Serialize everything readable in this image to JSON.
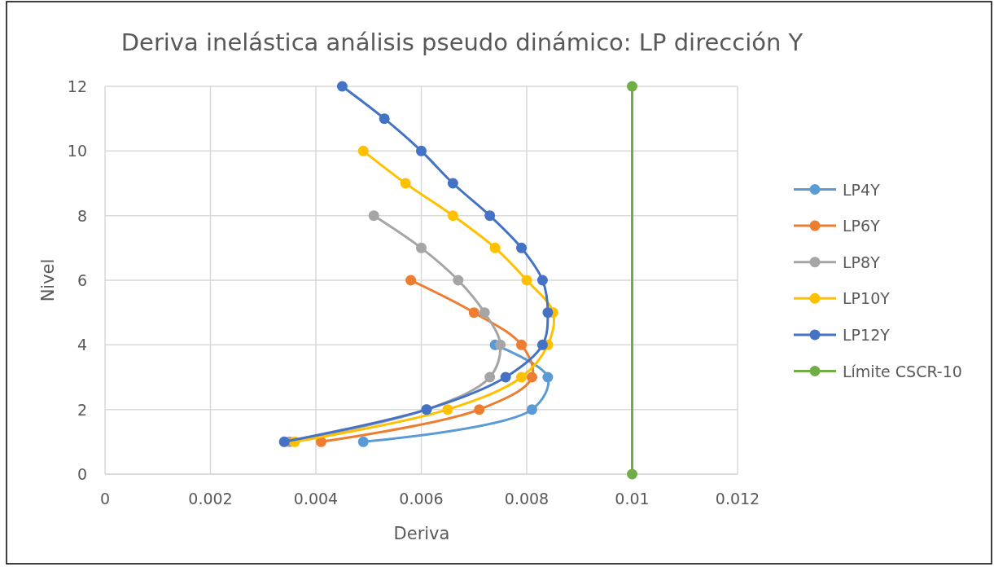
{
  "chart_data": {
    "type": "line",
    "title": "Deriva inelástica análisis pseudo dinámico: LP dirección Y",
    "xlabel": "Deriva",
    "ylabel": "Nivel",
    "xlim": [
      0,
      0.012
    ],
    "xticks": [
      0,
      0.002,
      0.004,
      0.006,
      0.008,
      0.01,
      0.012
    ],
    "ylim": [
      0,
      12
    ],
    "yticks": [
      0,
      2,
      4,
      6,
      8,
      10,
      12
    ],
    "grid": true,
    "legend": "right",
    "marker": "circle",
    "series": [
      {
        "name": "LP4Y",
        "color": "#5b9bd5",
        "x": [
          0.0049,
          0.0081,
          0.0084,
          0.0074
        ],
        "values": [
          1,
          2,
          3,
          4
        ]
      },
      {
        "name": "LP6Y",
        "color": "#ed7d31",
        "x": [
          0.0041,
          0.0071,
          0.0081,
          0.0079,
          0.007,
          0.0058
        ],
        "values": [
          1,
          2,
          3,
          4,
          5,
          6
        ]
      },
      {
        "name": "LP8Y",
        "color": "#a5a5a5",
        "x": [
          0.0035,
          0.0061,
          0.0073,
          0.0075,
          0.0072,
          0.0067,
          0.006,
          0.0051
        ],
        "values": [
          1,
          2,
          3,
          4,
          5,
          6,
          7,
          8
        ]
      },
      {
        "name": "LP10Y",
        "color": "#ffc000",
        "x": [
          0.0036,
          0.0065,
          0.0079,
          0.0084,
          0.0085,
          0.008,
          0.0074,
          0.0066,
          0.0057,
          0.0049
        ],
        "values": [
          1,
          2,
          3,
          4,
          5,
          6,
          7,
          8,
          9,
          10
        ]
      },
      {
        "name": "LP12Y",
        "color": "#4472c4",
        "x": [
          0.0034,
          0.0061,
          0.0076,
          0.0083,
          0.0084,
          0.0083,
          0.0079,
          0.0073,
          0.0066,
          0.006,
          0.0053,
          0.0045
        ],
        "values": [
          1,
          2,
          3,
          4,
          5,
          6,
          7,
          8,
          9,
          10,
          11,
          12
        ]
      },
      {
        "name": "Límite CSCR-10",
        "color": "#70ad47",
        "x": [
          0.01,
          0.01
        ],
        "values": [
          0,
          12
        ]
      }
    ]
  }
}
